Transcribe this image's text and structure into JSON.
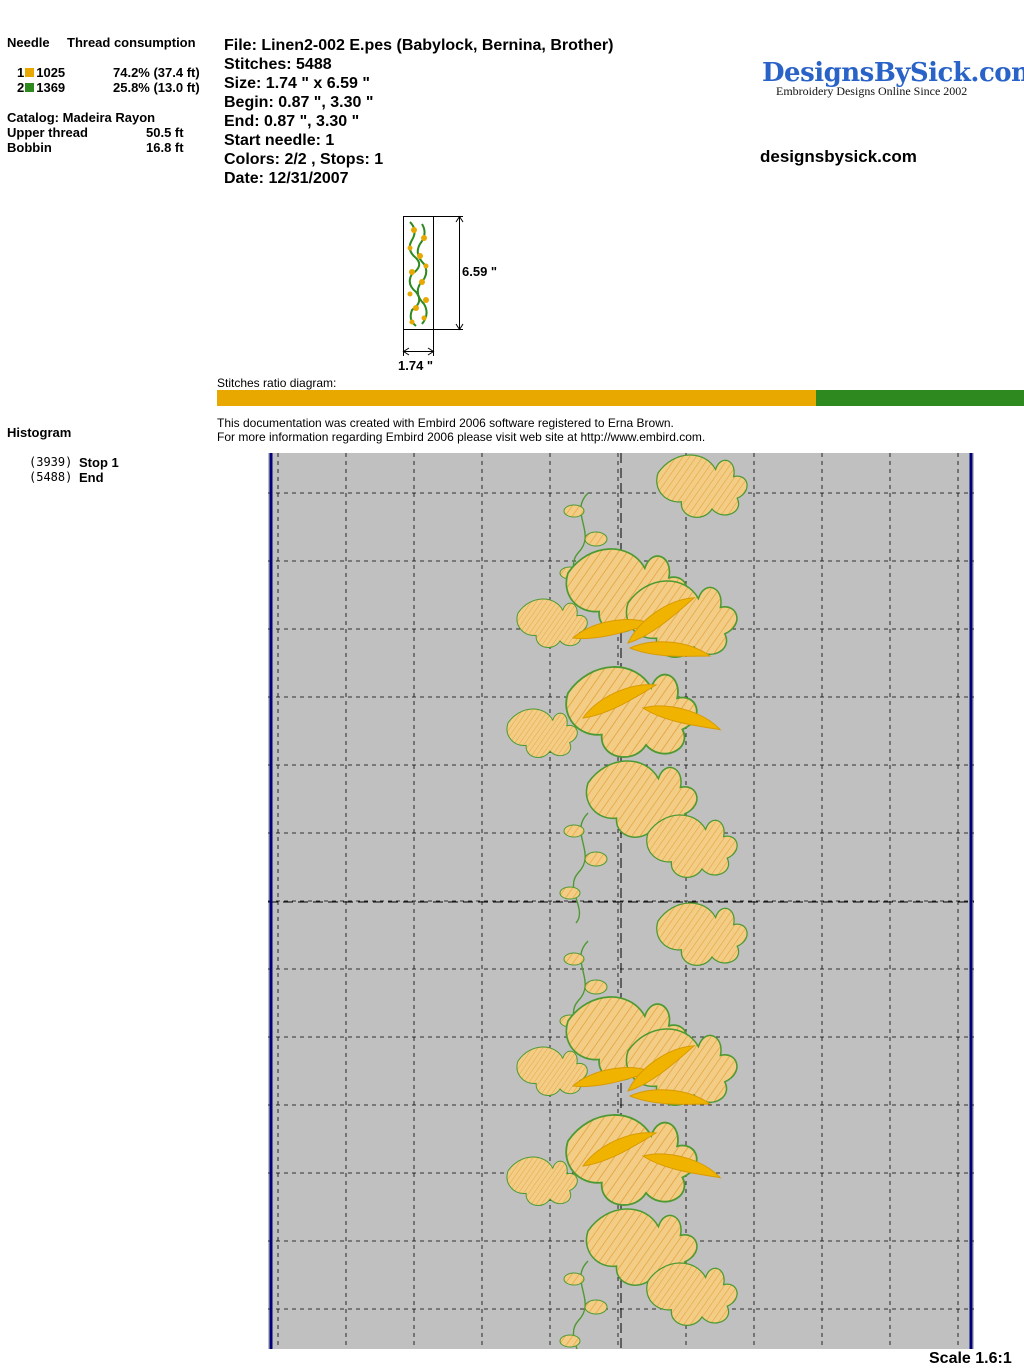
{
  "thread_panel": {
    "needle_header": "Needle",
    "consumption_header": "Thread consumption",
    "threads": [
      {
        "needle": "1",
        "code": "1025",
        "color": "#e8a800",
        "consumption": "74.2% (37.4 ft)"
      },
      {
        "needle": "2",
        "code": "1369",
        "color": "#2e8a1e",
        "consumption": "25.8% (13.0 ft)"
      }
    ],
    "catalog": "Catalog: Madeira Rayon",
    "upper_label": "Upper thread",
    "upper_value": "50.5 ft",
    "bobbin_label": "Bobbin",
    "bobbin_value": "16.8 ft"
  },
  "file_info": {
    "file": "File: Linen2-002 E.pes  (Babylock, Bernina, Brother)",
    "stitches": "Stitches: 5488",
    "size": "Size: 1.74 \" x 6.59 \"",
    "begin": "Begin: 0.87 \", 3.30 \"",
    "end": "End: 0.87 \", 3.30 \"",
    "start_needle": "Start needle: 1",
    "colors": "Colors: 2/2 , Stops: 1",
    "date": "Date: 12/31/2007"
  },
  "logo": {
    "main": "DesignsBySick.com",
    "tagline": "Embroidery Designs Online Since 2002",
    "url": "designsbysick.com"
  },
  "thumbnail": {
    "height_label": "6.59 \"",
    "width_label": "1.74 \""
  },
  "ratio": {
    "label": "Stitches ratio diagram:",
    "segments": [
      {
        "color": "#e8a800",
        "fraction": 0.742
      },
      {
        "color": "#2e8a1e",
        "fraction": 0.258
      }
    ]
  },
  "notice": {
    "line1": "This documentation was created with Embird 2006 software registered to Erna Brown.",
    "line2": "For more information regarding Embird 2006 please visit web site at http://www.embird.com."
  },
  "histogram": {
    "title": "Histogram",
    "entries": [
      {
        "count": "(3939)",
        "label": "Stop 1"
      },
      {
        "count": "(5488)",
        "label": "End"
      }
    ]
  },
  "preview": {
    "scale": "Scale 1.6:1",
    "background": "#c0c0c0",
    "border_color": "#00007a"
  }
}
